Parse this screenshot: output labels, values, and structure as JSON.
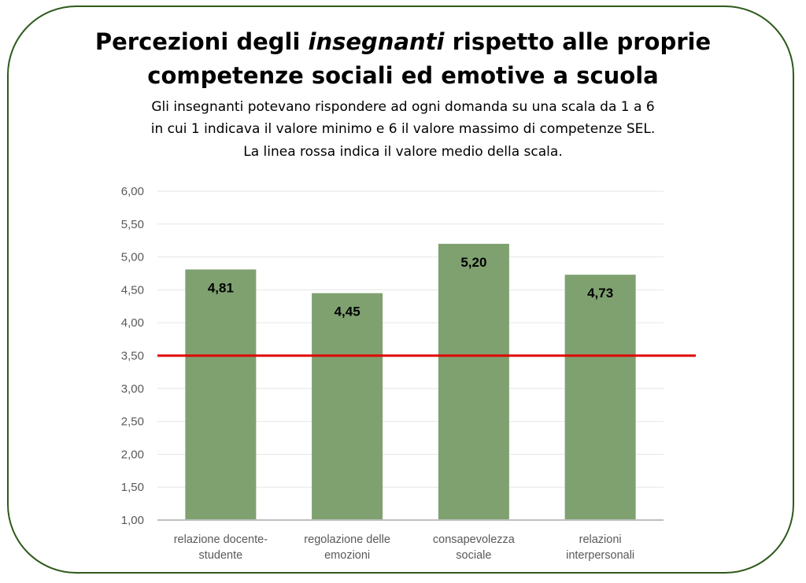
{
  "title_line1_prefix": "Percezioni degli ",
  "title_line1_emphasis": "insegnanti",
  "title_line1_suffix": " rispetto alle proprie",
  "title_line2": "competenze sociali ed emotive a scuola",
  "subtitle_line1": "Gli insegnanti potevano rispondere ad ogni domanda su una scala da 1 a 6",
  "subtitle_line2": "in cui 1 indicava il valore minimo e 6 il valore massimo di competenze SEL.",
  "subtitle_line3": "La linea rossa indica il valore medio della scala.",
  "colors": {
    "bar": "#7fa170",
    "reference_line": "#e00000",
    "frame": "#2e5a1c",
    "grid": "#e6e6e6",
    "axis": "#bfbfbf"
  },
  "chart_data": {
    "type": "bar",
    "categories": [
      [
        "relazione docente-",
        "studente"
      ],
      [
        "regolazione delle",
        "emozioni"
      ],
      [
        "consapevolezza",
        "sociale"
      ],
      [
        "relazioni",
        "interpersonali"
      ]
    ],
    "values": [
      4.81,
      4.45,
      5.2,
      4.73
    ],
    "value_labels": [
      "4,81",
      "4,45",
      "5,20",
      "4,73"
    ],
    "ylim": [
      1,
      6
    ],
    "y_ticks": [
      1.0,
      1.5,
      2.0,
      2.5,
      3.0,
      3.5,
      4.0,
      4.5,
      5.0,
      5.5,
      6.0
    ],
    "y_tick_labels": [
      "1,00",
      "1,50",
      "2,00",
      "2,50",
      "3,00",
      "3,50",
      "4,00",
      "4,50",
      "5,00",
      "5,50",
      "6,00"
    ],
    "reference_line_value": 3.5,
    "grid": true,
    "legend": "none",
    "xlabel": "",
    "ylabel": ""
  }
}
